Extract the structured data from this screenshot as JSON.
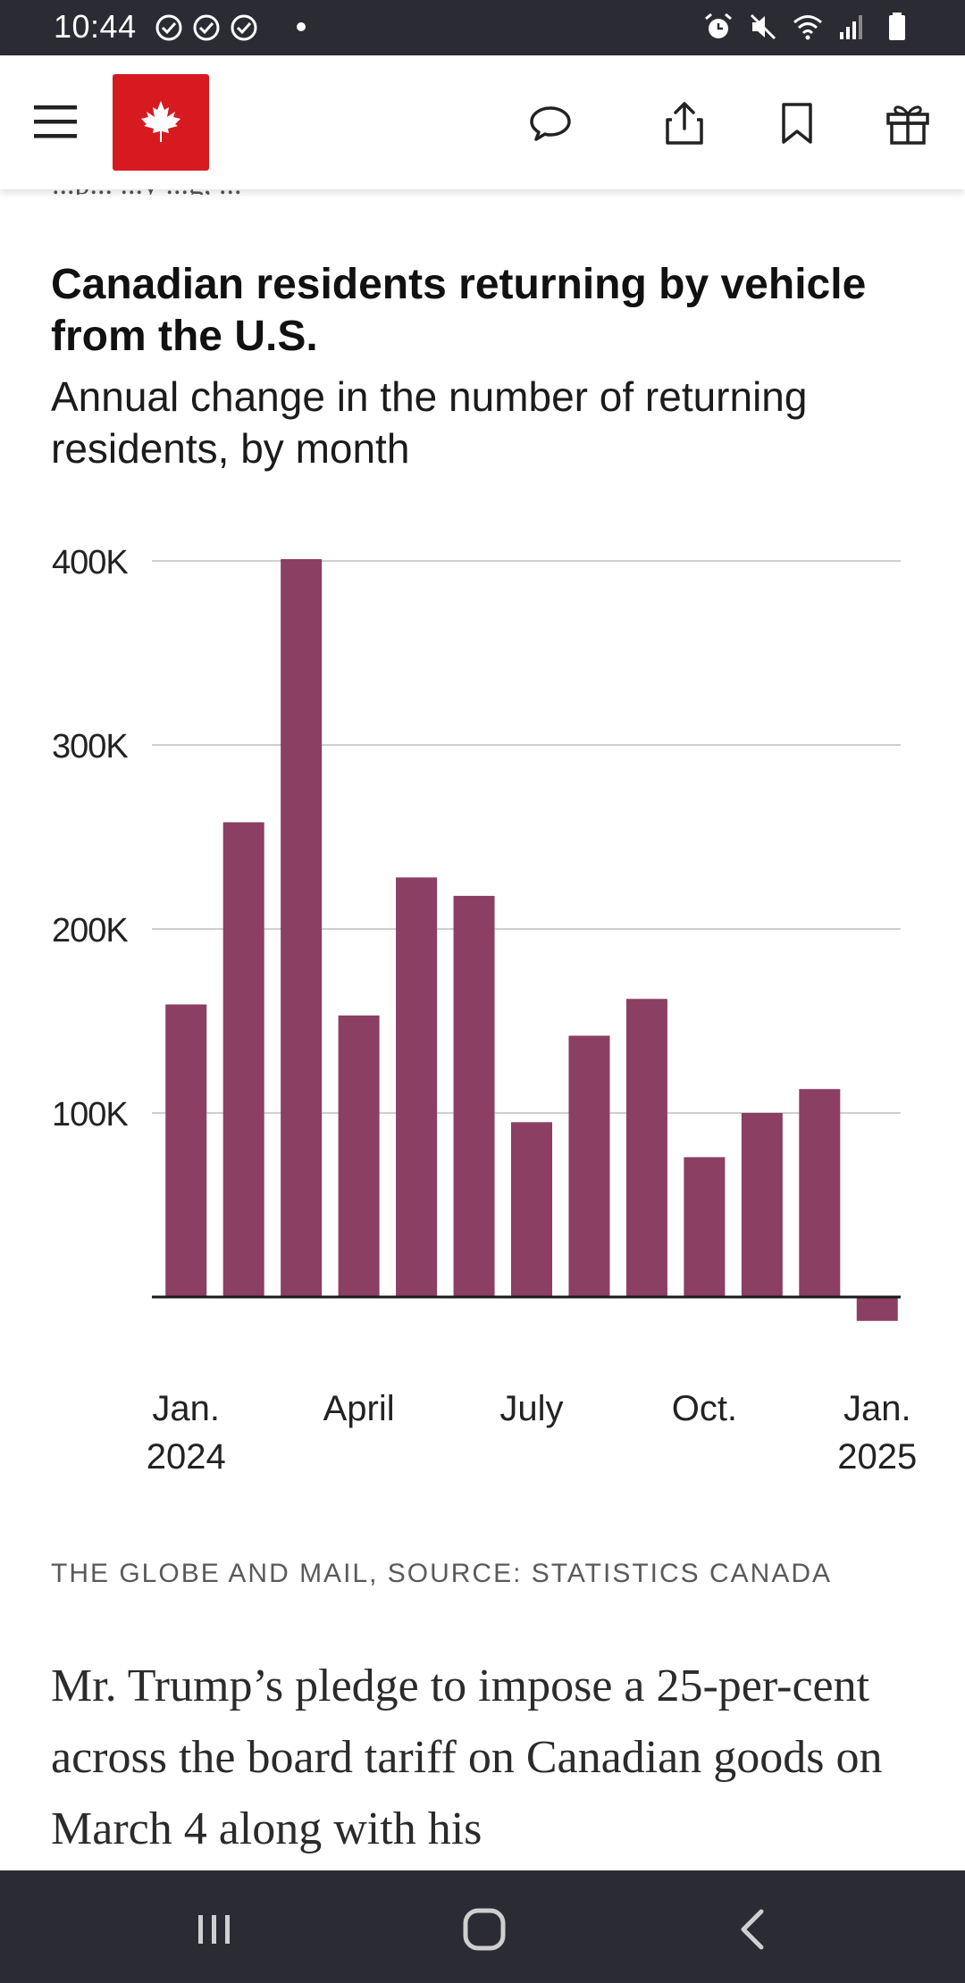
{
  "status_bar": {
    "time": "10:44",
    "icons": [
      "check-circle-icon",
      "check-circle-icon",
      "check-circle-icon",
      "alarm-icon",
      "mute-icon",
      "wifi-icon",
      "signal-icon",
      "battery-icon"
    ]
  },
  "toolbar": {
    "logo_name": "maple-leaf-logo",
    "logo_color": "#d71920",
    "icons": [
      "menu-icon",
      "comment-icon",
      "share-icon",
      "bookmark-icon",
      "gift-icon"
    ]
  },
  "article": {
    "cut_off_text": "...p... ...y ...g, ...",
    "body": "Mr. Trump’s pledge to impose a 25-per-cent across the board tariff on Canadian goods on March 4 along with his"
  },
  "chart": {
    "title": "Canadian residents returning by vehicle from the U.S.",
    "subtitle": "Annual change in the number of returning residents, by month",
    "source": "THE GLOBE AND MAIL, SOURCE: STATISTICS CANADA",
    "bar_color": "#8b3f62"
  },
  "chart_data": {
    "type": "bar",
    "title": "Canadian residents returning by vehicle from the U.S.",
    "subtitle": "Annual change in the number of returning residents, by month",
    "categories": [
      "Jan. 2024",
      "Feb. 2024",
      "Mar. 2024",
      "Apr. 2024",
      "May 2024",
      "Jun. 2024",
      "Jul. 2024",
      "Aug. 2024",
      "Sep. 2024",
      "Oct. 2024",
      "Nov. 2024",
      "Dec. 2024",
      "Jan. 2025"
    ],
    "values": [
      159000,
      258000,
      401000,
      153000,
      228000,
      218000,
      95000,
      142000,
      162000,
      76000,
      100000,
      113000,
      -13000
    ],
    "ylim": [
      -13000,
      400000
    ],
    "yticks": [
      100000,
      200000,
      300000,
      400000
    ],
    "ytick_labels": [
      "100K",
      "200K",
      "300K",
      "400K"
    ],
    "xtick_labels": [
      {
        "index": 0,
        "lines": [
          "Jan.",
          "2024"
        ]
      },
      {
        "index": 3,
        "lines": [
          "April"
        ]
      },
      {
        "index": 6,
        "lines": [
          "July"
        ]
      },
      {
        "index": 9,
        "lines": [
          "Oct."
        ]
      },
      {
        "index": 12,
        "lines": [
          "Jan.",
          "2025"
        ]
      }
    ],
    "grid": true,
    "xlabel": "",
    "ylabel": ""
  },
  "nav_bar": {
    "icons": [
      "recent-apps-icon",
      "home-icon",
      "back-icon"
    ]
  }
}
